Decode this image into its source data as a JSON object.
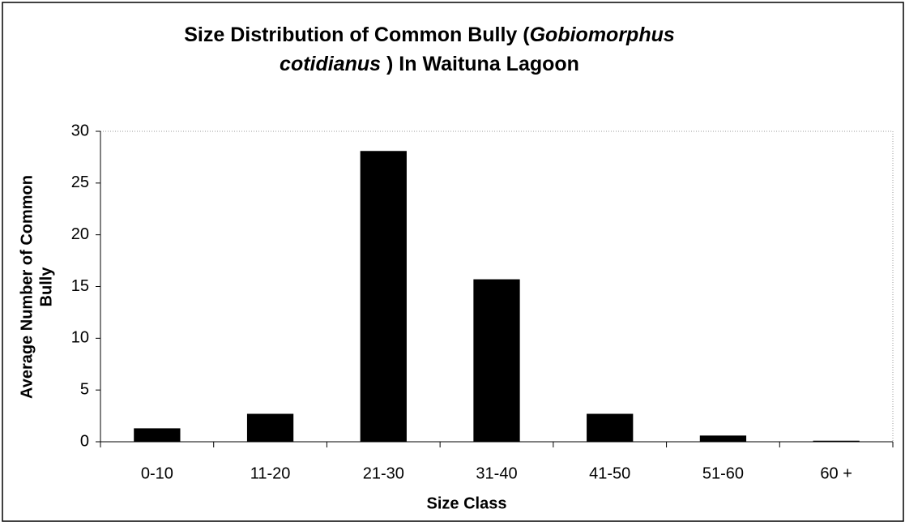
{
  "chart_data": {
    "type": "bar",
    "title": [
      "Size Distribution of Common Bully (",
      "Gobiomorphus",
      "cotidianus",
      " ) In Waituna Lagoon"
    ],
    "xlabel": "Size Class",
    "ylabel": [
      "Average Number of Common",
      "Bully"
    ],
    "categories": [
      "0-10",
      "11-20",
      "21-30",
      "31-40",
      "41-50",
      "51-60",
      "60 +"
    ],
    "values": [
      1.3,
      2.7,
      28.1,
      15.7,
      2.7,
      0.6,
      0.1
    ],
    "color": "#000000",
    "ylim": [
      0,
      30
    ],
    "yticks": [
      0,
      5,
      10,
      15,
      20,
      25,
      30
    ],
    "grid": false
  }
}
